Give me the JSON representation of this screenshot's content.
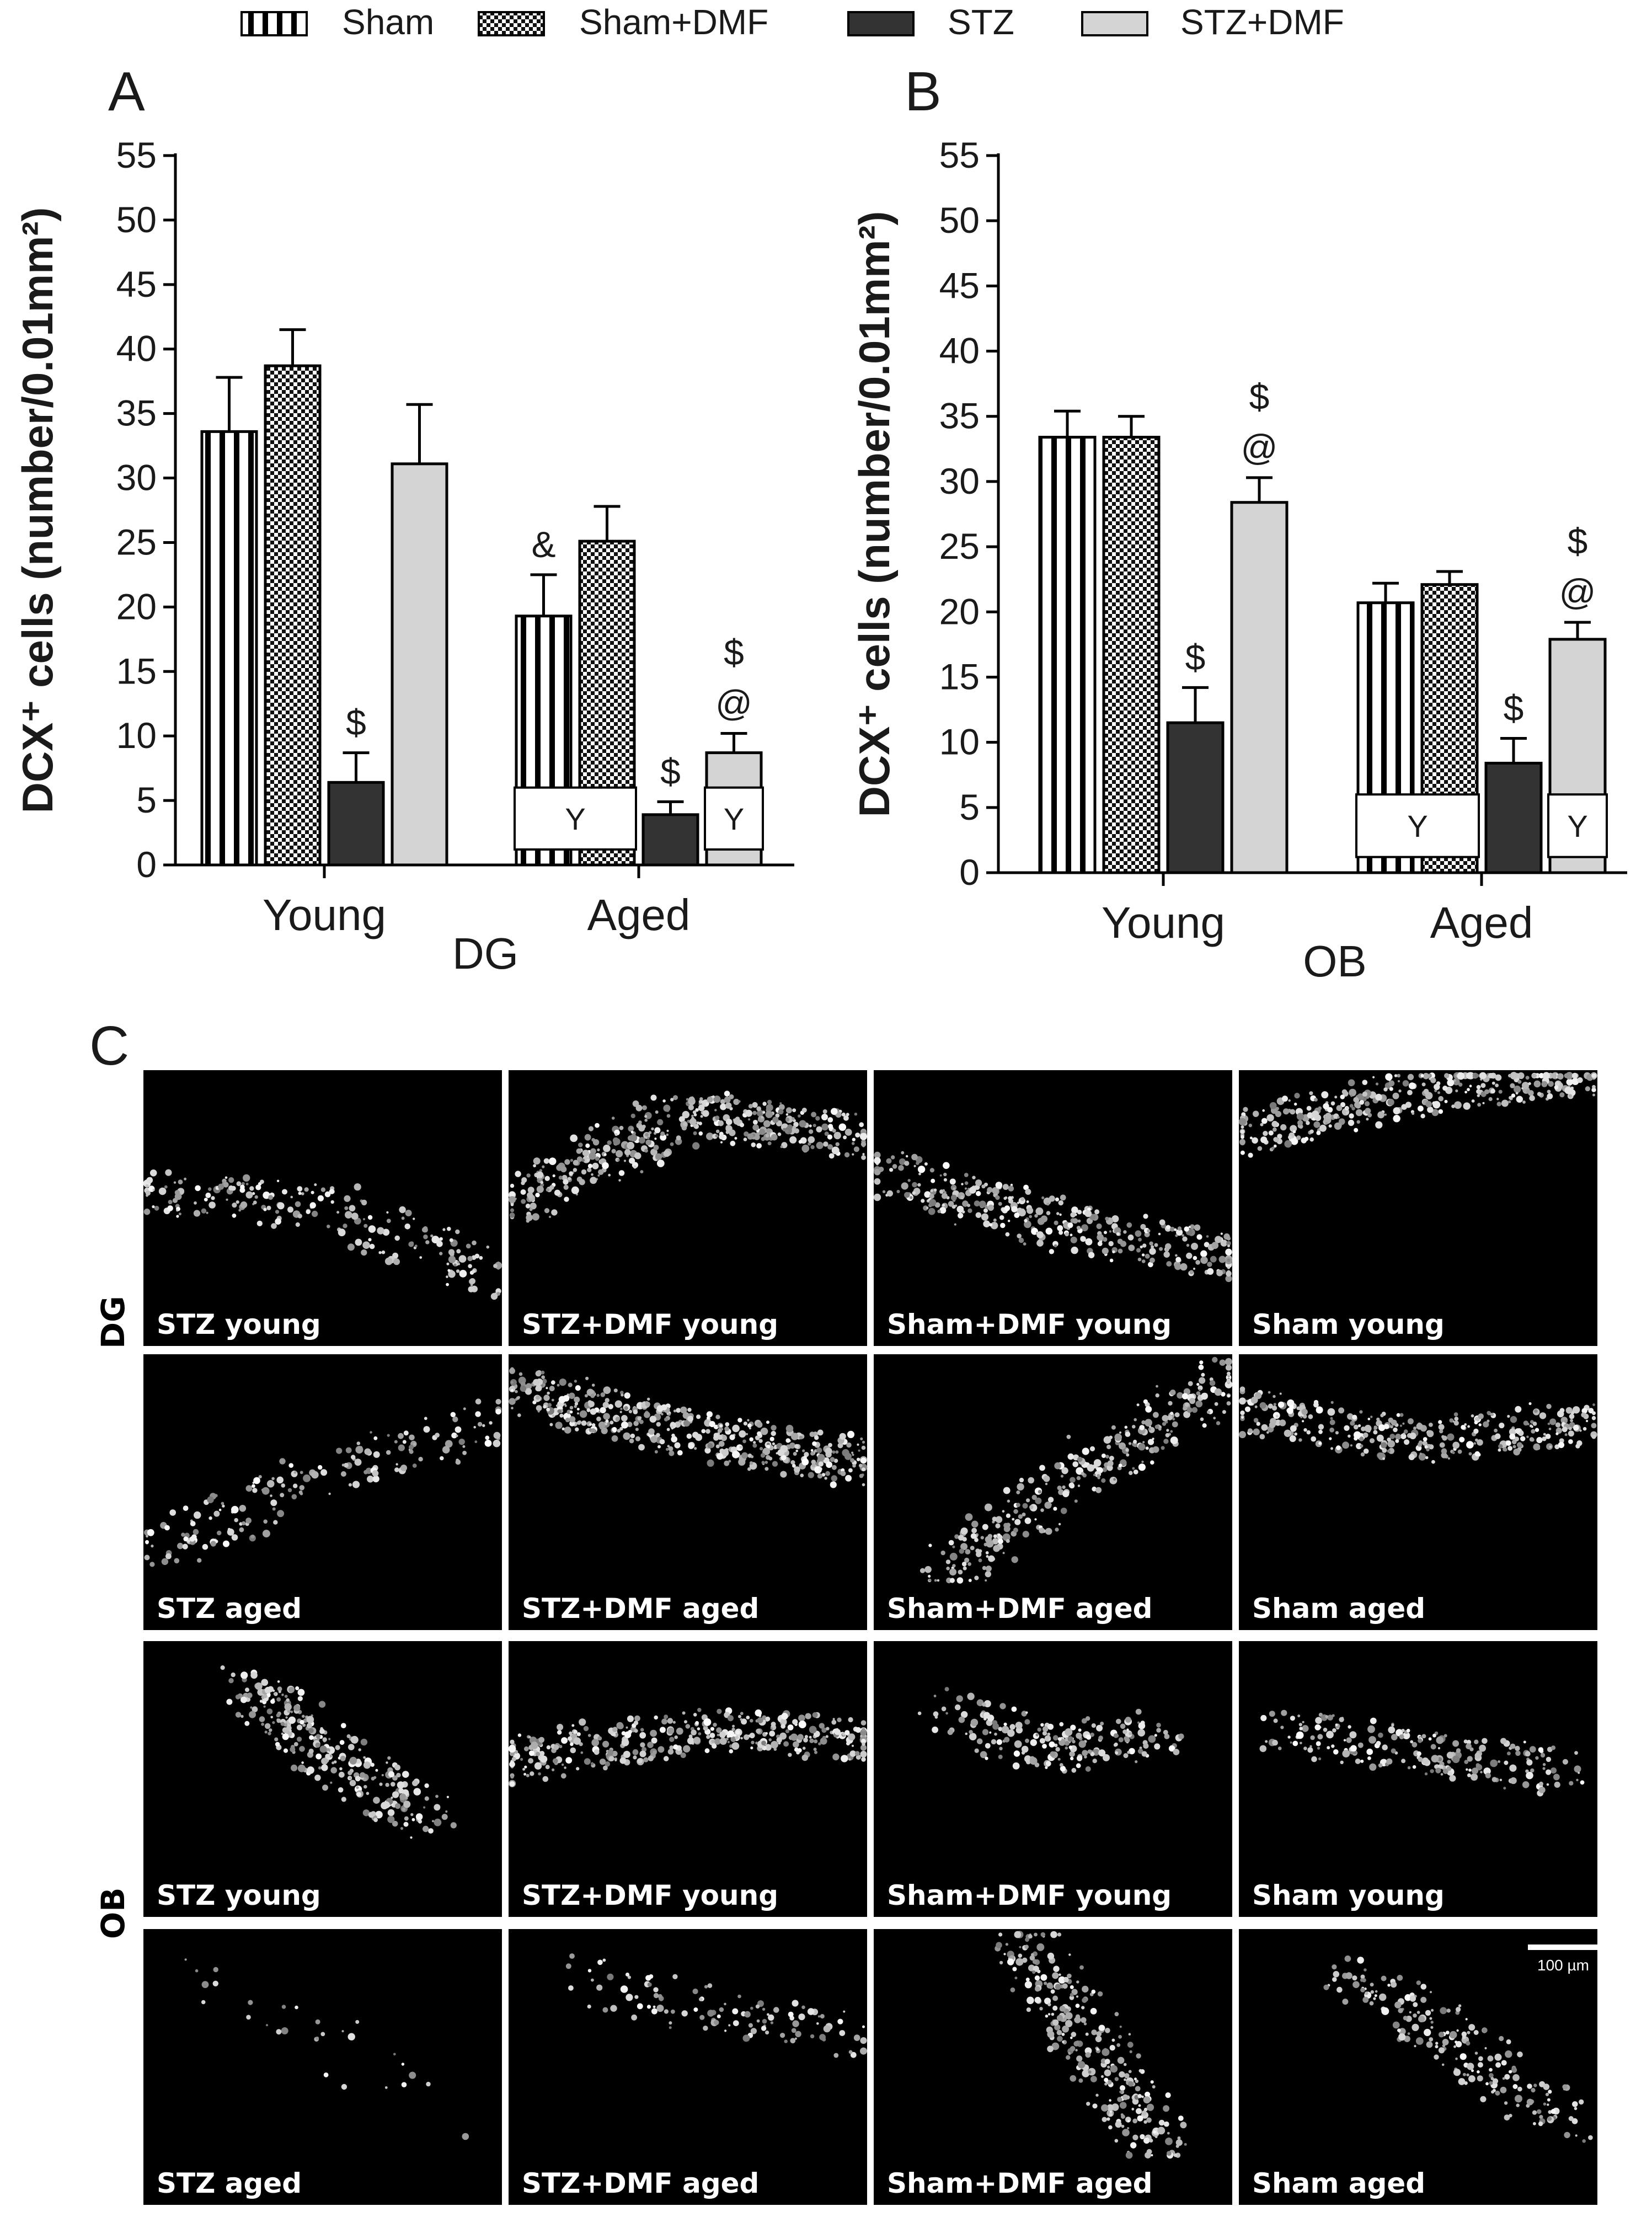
{
  "legend": {
    "items": [
      {
        "label": "Sham",
        "pattern": "vstripes"
      },
      {
        "label": "Sham+DMF",
        "pattern": "checker"
      },
      {
        "label": "STZ",
        "pattern": "dark"
      },
      {
        "label": "STZ+DMF",
        "pattern": "light"
      }
    ]
  },
  "colors": {
    "dark": "#333333",
    "light": "#d4d4d4",
    "stripe": "#000000"
  },
  "chart_data": [
    {
      "type": "bar",
      "panel_letter": "A",
      "region_label": "DG",
      "ylabel": "DCX⁺ cells (number/0.01mm²)",
      "ylim": [
        0,
        55
      ],
      "yticks": [
        0,
        5,
        10,
        15,
        20,
        25,
        30,
        35,
        40,
        45,
        50,
        55
      ],
      "categories": [
        "Young",
        "Aged"
      ],
      "series": [
        {
          "name": "Sham",
          "values": [
            33.6,
            19.3
          ],
          "errors": [
            4.2,
            3.2
          ]
        },
        {
          "name": "Sham+DMF",
          "values": [
            38.7,
            25.1
          ],
          "errors": [
            2.8,
            2.7
          ]
        },
        {
          "name": "STZ",
          "values": [
            6.4,
            3.9
          ],
          "errors": [
            2.3,
            1.0
          ]
        },
        {
          "name": "STZ+DMF",
          "values": [
            31.1,
            8.7
          ],
          "errors": [
            4.6,
            1.5
          ]
        }
      ],
      "annotations": [
        {
          "category": "Young",
          "series": "STZ",
          "marks": [
            "$"
          ]
        },
        {
          "category": "Aged",
          "series": "Sham",
          "marks": [
            "&"
          ]
        },
        {
          "category": "Aged",
          "series": "STZ",
          "marks": [
            "$"
          ]
        },
        {
          "category": "Aged",
          "series": "STZ+DMF",
          "marks": [
            "$",
            "@"
          ]
        }
      ],
      "boxes": [
        {
          "category": "Aged",
          "series_from": "Sham",
          "series_to": "Sham+DMF",
          "text": "Y"
        },
        {
          "category": "Aged",
          "series_from": "STZ+DMF",
          "series_to": "STZ+DMF",
          "text": "Y"
        }
      ]
    },
    {
      "type": "bar",
      "panel_letter": "B",
      "region_label": "OB",
      "ylabel": "DCX⁺ cells (number/0.01mm²)",
      "ylim": [
        0,
        55
      ],
      "yticks": [
        0,
        5,
        10,
        15,
        20,
        25,
        30,
        35,
        40,
        45,
        50,
        55
      ],
      "categories": [
        "Young",
        "Aged"
      ],
      "series": [
        {
          "name": "Sham",
          "values": [
            33.4,
            20.7
          ],
          "errors": [
            2.0,
            1.5
          ]
        },
        {
          "name": "Sham+DMF",
          "values": [
            33.4,
            22.1
          ],
          "errors": [
            1.6,
            1.0
          ]
        },
        {
          "name": "STZ",
          "values": [
            11.5,
            8.4
          ],
          "errors": [
            2.7,
            1.9
          ]
        },
        {
          "name": "STZ+DMF",
          "values": [
            28.4,
            17.9
          ],
          "errors": [
            1.9,
            1.3
          ]
        }
      ],
      "annotations": [
        {
          "category": "Young",
          "series": "STZ",
          "marks": [
            "$"
          ]
        },
        {
          "category": "Young",
          "series": "STZ+DMF",
          "marks": [
            "$",
            "@"
          ]
        },
        {
          "category": "Aged",
          "series": "STZ",
          "marks": [
            "$"
          ]
        },
        {
          "category": "Aged",
          "series": "STZ+DMF",
          "marks": [
            "$",
            "@"
          ]
        }
      ],
      "boxes": [
        {
          "category": "Aged",
          "series_from": "Sham",
          "series_to": "Sham+DMF",
          "text": "Y"
        },
        {
          "category": "Aged",
          "series_from": "STZ+DMF",
          "series_to": "STZ+DMF",
          "text": "Y"
        }
      ]
    }
  ],
  "micrographs": {
    "panel_letter": "C",
    "row_groups": [
      "DG",
      "OB"
    ],
    "scale_bar": "100 µm",
    "captions": [
      [
        "STZ young",
        "STZ+DMF young",
        "Sham+DMF young",
        "Sham young"
      ],
      [
        "STZ aged",
        "STZ+DMF aged",
        "Sham+DMF aged",
        "Sham aged"
      ],
      [
        "STZ young",
        "STZ+DMF young",
        "Sham+DMF young",
        "Sham young"
      ],
      [
        "STZ aged",
        "STZ+DMF aged",
        "Sham+DMF  aged",
        "Sham aged"
      ]
    ]
  }
}
